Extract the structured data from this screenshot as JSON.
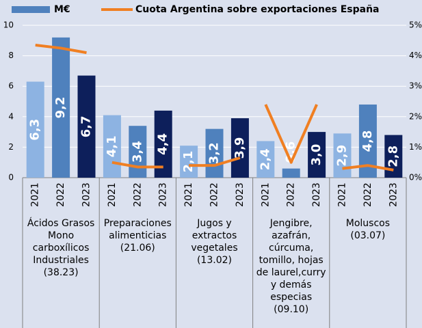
{
  "chart_data": {
    "type": "bar",
    "categories": [
      "2021",
      "2022",
      "2023",
      "2021",
      "2022",
      "2023",
      "2021",
      "2022",
      "2023",
      "2021",
      "2022",
      "2023",
      "2021",
      "2022",
      "2023"
    ],
    "groups": [
      "Ácidos Grasos Mono carboxílicos Industriales (38.23)",
      "Preparaciones alimenticias (21.06)",
      "Jugos y extractos vegetales (13.02)",
      "Jengibre, azafrán, cúrcuma, tomillo, hojas de laurel,curry y demás especias (09.10)",
      "Moluscos (03.07)"
    ],
    "series": [
      {
        "name": "M€",
        "type": "bar",
        "color": "#4f81bd",
        "year_colors": [
          "#8db3e2",
          "#4f81bd",
          "#0d1f5b"
        ],
        "values": [
          6.3,
          9.2,
          6.7,
          4.1,
          3.4,
          4.4,
          2.1,
          3.2,
          3.9,
          2.4,
          0.6,
          3.0,
          2.9,
          4.8,
          2.8
        ],
        "value_labels": [
          "6,3",
          "9,2",
          "6,7",
          "4,1",
          "3,4",
          "4,4",
          "2,1",
          "3,2",
          "3,9",
          "2,4",
          "0,6",
          "3,0",
          "2,9",
          "4,8",
          "2,8"
        ]
      },
      {
        "name": "Cuota Argentina sobre exportaciones España",
        "type": "line",
        "axis": "y2",
        "color": "#f07f22",
        "values": [
          4.35,
          4.25,
          4.1,
          0.5,
          0.35,
          0.35,
          0.4,
          0.4,
          0.65,
          2.4,
          0.5,
          2.4,
          0.3,
          0.4,
          0.25
        ]
      }
    ],
    "ylim": [
      0,
      10
    ],
    "yticks": [
      0,
      2,
      4,
      6,
      8,
      10
    ],
    "y2lim": [
      0,
      5
    ],
    "y2ticks": [
      {
        "value": 0,
        "label": "0%"
      },
      {
        "value": 1,
        "label": "1%"
      },
      {
        "value": 2,
        "label": "2%"
      },
      {
        "value": 3,
        "label": "3%"
      },
      {
        "value": 4,
        "label": "4%"
      },
      {
        "value": 5,
        "label": "5%"
      }
    ],
    "grid": true
  }
}
